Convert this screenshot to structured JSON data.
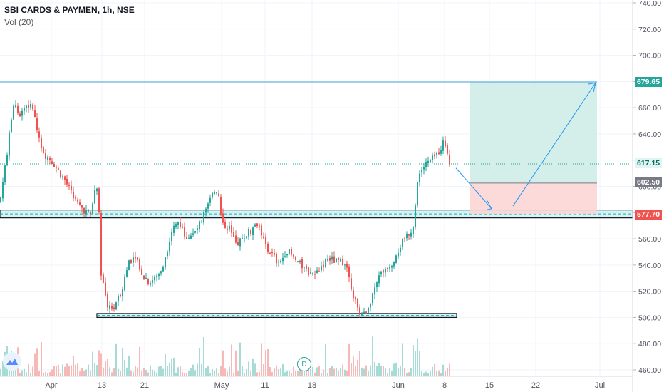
{
  "header": {
    "symbol": "SBI CARDS & PAYMEN, 1h, NSE",
    "volume_label": "Vol (20)"
  },
  "price_axis": {
    "ticks": [
      "740.00",
      "720.00",
      "700.00",
      "680.00",
      "660.00",
      "640.00",
      "620.00",
      "600.00",
      "580.00",
      "560.00",
      "540.00",
      "520.00",
      "500.00",
      "480.00",
      "460.00"
    ],
    "tags": [
      {
        "label": "679.65",
        "bg": "#26a69a",
        "fg": "#ffffff"
      },
      {
        "label": "617.15",
        "bg": "#e0f5f3",
        "fg": "#0e6b62"
      },
      {
        "label": "602.50",
        "bg": "#787b86",
        "fg": "#ffffff"
      },
      {
        "label": "577.70",
        "bg": "#ef5350",
        "fg": "#ffffff"
      }
    ]
  },
  "time_axis": {
    "ticks": [
      "Apr",
      "13",
      "21",
      "May",
      "11",
      "18",
      "Jun",
      "8",
      "15",
      "22",
      "Jul"
    ]
  },
  "badges": {
    "dividend": "D"
  },
  "colors": {
    "up": "#26a69a",
    "down": "#ef5350",
    "zone_fill": "#b2ebf2",
    "target_fill": "#cdebe6",
    "stop_fill": "#fbd4d4",
    "trend_line": "#2196f3"
  },
  "chart_data": {
    "type": "candlestick",
    "price_range": [
      455,
      742
    ],
    "levels": {
      "resistance_top": 679.65,
      "last_price": 617.15,
      "entry": 602.5,
      "stop": 577.7
    },
    "zones": [
      {
        "name": "upper support band",
        "from": 576,
        "to": 582
      },
      {
        "name": "lower support band",
        "from": 500,
        "to": 503
      }
    ],
    "series": [
      {
        "name": "SBI CARDS & PAYMEN",
        "anchors": [
          [
            0,
            588
          ],
          [
            8,
            618
          ],
          [
            20,
            667
          ],
          [
            26,
            654
          ],
          [
            36,
            662
          ],
          [
            46,
            660
          ],
          [
            52,
            643
          ],
          [
            62,
            625
          ],
          [
            72,
            620
          ],
          [
            82,
            612
          ],
          [
            92,
            604
          ],
          [
            102,
            592
          ],
          [
            112,
            585
          ],
          [
            120,
            581
          ],
          [
            128,
            578
          ],
          [
            132,
            597
          ],
          [
            138,
            600
          ],
          [
            142,
            532
          ],
          [
            150,
            510
          ],
          [
            160,
            507
          ],
          [
            170,
            520
          ],
          [
            180,
            542
          ],
          [
            190,
            548
          ],
          [
            200,
            533
          ],
          [
            210,
            527
          ],
          [
            222,
            532
          ],
          [
            232,
            545
          ],
          [
            240,
            565
          ],
          [
            250,
            573
          ],
          [
            262,
            562
          ],
          [
            272,
            563
          ],
          [
            282,
            573
          ],
          [
            292,
            585
          ],
          [
            300,
            596
          ],
          [
            306,
            598
          ],
          [
            312,
            572
          ],
          [
            322,
            568
          ],
          [
            332,
            555
          ],
          [
            342,
            562
          ],
          [
            352,
            566
          ],
          [
            362,
            573
          ],
          [
            372,
            556
          ],
          [
            382,
            548
          ],
          [
            392,
            540
          ],
          [
            402,
            552
          ],
          [
            412,
            545
          ],
          [
            422,
            540
          ],
          [
            432,
            535
          ],
          [
            442,
            533
          ],
          [
            452,
            540
          ],
          [
            462,
            545
          ],
          [
            474,
            542
          ],
          [
            484,
            543
          ],
          [
            494,
            522
          ],
          [
            502,
            505
          ],
          [
            512,
            502
          ],
          [
            520,
            513
          ],
          [
            530,
            530
          ],
          [
            540,
            537
          ],
          [
            550,
            542
          ],
          [
            560,
            553
          ],
          [
            570,
            562
          ],
          [
            580,
            569
          ],
          [
            584,
            595
          ],
          [
            590,
            612
          ],
          [
            598,
            617
          ],
          [
            606,
            620
          ],
          [
            614,
            625
          ],
          [
            622,
            633
          ],
          [
            628,
            627
          ],
          [
            632,
            617
          ]
        ]
      }
    ]
  }
}
